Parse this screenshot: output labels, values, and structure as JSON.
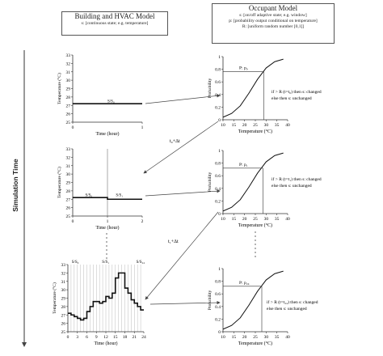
{
  "building_box": {
    "title": "Building and HVAC Model",
    "subtitle": "s: [continuous state; e.g. temperature]"
  },
  "occupant_box": {
    "title": "Occupant Model",
    "line1": "s: [on/off adaptive state; e.g. window]",
    "line2": "p: [probability output conditional on temperature]",
    "line3": "R: [uniform random number [0,1]]"
  },
  "axis_label": "Simulation Time",
  "transition_labels": [
    "t₀+Δt",
    "t₁+Δt"
  ],
  "rules": [
    {
      "l1": "if > R (t=t₀) then s: changed",
      "l2": "else then s: unchanged"
    },
    {
      "l1": "if > R (t=t₁) then s: changed",
      "l2": "else then s: unchanged"
    },
    {
      "l1": "if > R (t=t₂₄) then s: changed",
      "l2": "else then s: unchanged"
    }
  ],
  "chart_data": [
    {
      "type": "line",
      "xlabel": "Time (hour)",
      "ylabel": "Temperature (°C)",
      "xlim": [
        0,
        1
      ],
      "ylim": [
        25,
        33
      ],
      "xticks": [
        0,
        1
      ],
      "yticks": [
        25,
        26,
        27,
        28,
        29,
        30,
        31,
        32,
        33
      ],
      "x": [
        0,
        1
      ],
      "y": [
        27.2,
        27.2
      ],
      "annotations": [
        "S/S₀"
      ]
    },
    {
      "type": "line",
      "xlabel": "Time (hour)",
      "ylabel": "Temperature (°C)",
      "xlim": [
        0,
        2
      ],
      "ylim": [
        25,
        33
      ],
      "xticks": [
        0,
        1,
        2
      ],
      "yticks": [
        25,
        26,
        27,
        28,
        29,
        30,
        31,
        32,
        33
      ],
      "x": [
        0,
        1,
        1,
        2
      ],
      "y": [
        27.2,
        27.2,
        27.0,
        27.0
      ],
      "annotations": [
        "S/S₀",
        "S/S₁"
      ]
    },
    {
      "type": "line",
      "xlabel": "Time (hour)",
      "ylabel": "Temperature (°C)",
      "xlim": [
        0,
        24
      ],
      "ylim": [
        25,
        33
      ],
      "xticks": [
        0,
        3,
        6,
        9,
        12,
        15,
        18,
        21,
        24
      ],
      "yticks": [
        25,
        26,
        27,
        28,
        29,
        30,
        31,
        32,
        33
      ],
      "x": [
        0,
        1,
        2,
        3,
        4,
        5,
        6,
        7,
        8,
        9,
        10,
        11,
        12,
        13,
        14,
        15,
        16,
        17,
        18,
        19,
        20,
        21,
        22,
        23,
        24
      ],
      "y": [
        27.2,
        27.0,
        26.8,
        26.6,
        26.4,
        26.6,
        27.4,
        28.0,
        28.6,
        28.6,
        28.4,
        28.6,
        29.2,
        29.0,
        29.6,
        31.4,
        32.0,
        32.0,
        30.2,
        29.6,
        28.8,
        28.4,
        28.0,
        27.6,
        27.6
      ],
      "annotations": [
        "S/S₀",
        "S/S₁",
        "S/S₂₄"
      ]
    },
    {
      "type": "line",
      "xlabel": "Temperature (°C)",
      "ylabel": "Probability",
      "xlim": [
        10,
        40
      ],
      "ylim": [
        0,
        1
      ],
      "xticks": [
        10,
        15,
        20,
        25,
        30,
        35,
        40
      ],
      "yticks": [
        0,
        0.2,
        0.4,
        0.6,
        0.8,
        1
      ],
      "x": [
        10,
        14,
        18,
        22,
        26,
        30,
        34,
        38
      ],
      "y": [
        0.04,
        0.1,
        0.22,
        0.42,
        0.64,
        0.82,
        0.92,
        0.96
      ],
      "marker_x": 29,
      "marker_y": 0.76,
      "annotations": [
        "P: p₀"
      ]
    },
    {
      "type": "line",
      "xlabel": "Temperature (°C)",
      "ylabel": "Probability",
      "xlim": [
        10,
        40
      ],
      "ylim": [
        0,
        1
      ],
      "xticks": [
        10,
        15,
        20,
        25,
        30,
        35,
        40
      ],
      "yticks": [
        0,
        0.2,
        0.4,
        0.6,
        0.8,
        1
      ],
      "x": [
        10,
        14,
        18,
        22,
        26,
        30,
        34,
        38
      ],
      "y": [
        0.04,
        0.1,
        0.22,
        0.42,
        0.64,
        0.82,
        0.92,
        0.96
      ],
      "marker_x": 28.5,
      "marker_y": 0.72,
      "annotations": [
        "P: p₁"
      ]
    },
    {
      "type": "line",
      "xlabel": "Temperature (°C)",
      "ylabel": "Probability",
      "xlim": [
        10,
        40
      ],
      "ylim": [
        0,
        1
      ],
      "xticks": [
        10,
        15,
        20,
        25,
        30,
        35,
        40
      ],
      "yticks": [
        0,
        0.2,
        0.4,
        0.6,
        0.8,
        1
      ],
      "x": [
        10,
        14,
        18,
        22,
        26,
        30,
        34,
        38
      ],
      "y": [
        0.04,
        0.1,
        0.22,
        0.42,
        0.64,
        0.82,
        0.92,
        0.96
      ],
      "marker_x": 28,
      "marker_y": 0.72,
      "annotations": [
        "P: p₂₄"
      ]
    }
  ]
}
